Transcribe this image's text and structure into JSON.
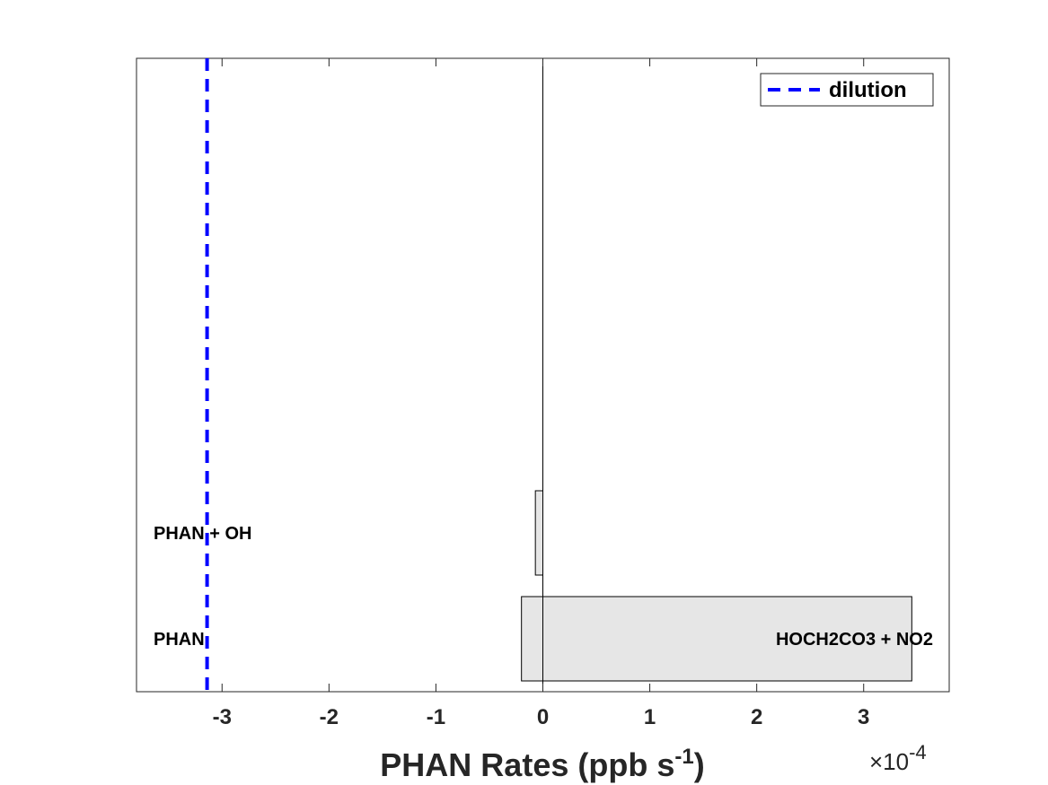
{
  "chart_data": {
    "type": "bar",
    "orientation": "horizontal",
    "xlabel_main": "PHAN Rates (ppb s",
    "xlabel_sup": "-1",
    "xlabel_close": ")",
    "x_multiplier_prefix": "×10",
    "x_multiplier_exp": "-4",
    "xlim": [
      -3.8,
      3.8
    ],
    "xticks": [
      -3,
      -2,
      -1,
      0,
      1,
      2,
      3
    ],
    "xtick_labels": [
      "-3",
      "-2",
      "-1",
      "0",
      "1",
      "2",
      "3"
    ],
    "grid": false,
    "bar_color": "#e6e6e6",
    "bars": [
      {
        "row": 1,
        "segments": [
          {
            "start": -0.2,
            "end": 3.45
          }
        ],
        "left_label": "PHAN",
        "right_label": "HOCH2CO3 + NO2"
      },
      {
        "row": 2,
        "segments": [
          {
            "start": -0.07,
            "end": 0
          }
        ],
        "left_label": "PHAN + OH",
        "right_label": ""
      }
    ],
    "reference_line": {
      "name": "dilution",
      "x": -3.14,
      "color": "#0000ff",
      "style": "dashed"
    },
    "legend": {
      "position": "top-right",
      "entries": [
        "dilution"
      ]
    }
  }
}
